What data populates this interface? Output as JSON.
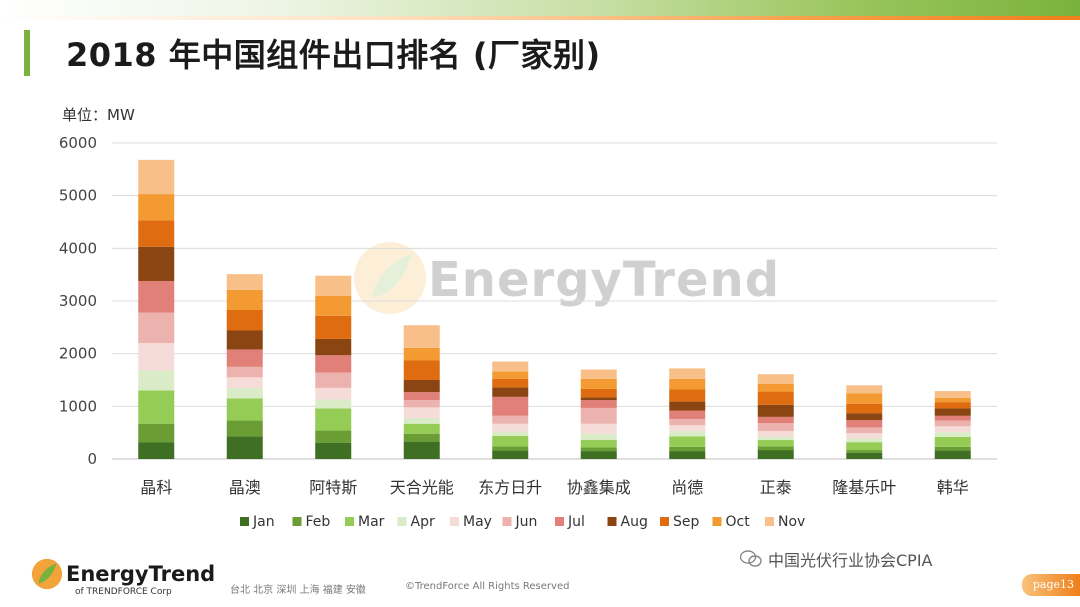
{
  "header": {
    "title": "2018 年中国组件出口排名 (厂家别)",
    "unit_label": "单位：MW"
  },
  "watermark": {
    "text": "EnergyTrend"
  },
  "footer": {
    "logo_text": "EnergyTrend",
    "logo_sub": "of TRENDFORCE Corp",
    "cities": "台北  北京  深圳  上海  福建  安徽",
    "copyright": "©TrendForce All Rights Reserved",
    "wechat_text": "中国光伏行业协会CPIA",
    "page_label": "page13"
  },
  "colors": {
    "green_accent": "#7ab23e",
    "orange_accent": "#ef7f1a"
  },
  "chart_data": {
    "type": "bar",
    "stacked": true,
    "title": "2018 年中国组件出口排名 (厂家别)",
    "ylabel": "单位：MW",
    "xlabel": "",
    "ylim": [
      0,
      6000
    ],
    "yticks": [
      0,
      1000,
      2000,
      3000,
      4000,
      5000,
      6000
    ],
    "grid": true,
    "legend_position": "bottom",
    "categories": [
      "晶科",
      "晶澳",
      "阿特斯",
      "天合光能",
      "东方日升",
      "协鑫集成",
      "尚德",
      "正泰",
      "隆基乐叶",
      "韩华"
    ],
    "series": [
      {
        "name": "Jan",
        "color": "#3f6f23",
        "values": [
          320,
          430,
          310,
          330,
          160,
          150,
          150,
          170,
          120,
          160
        ]
      },
      {
        "name": "Feb",
        "color": "#6a9e34",
        "values": [
          350,
          300,
          230,
          150,
          80,
          70,
          80,
          70,
          50,
          70
        ]
      },
      {
        "name": "Mar",
        "color": "#95cc55",
        "values": [
          630,
          420,
          420,
          190,
          200,
          140,
          200,
          120,
          150,
          190
        ]
      },
      {
        "name": "Apr",
        "color": "#d9ecc7",
        "values": [
          380,
          200,
          170,
          110,
          80,
          120,
          100,
          60,
          70,
          90
        ]
      },
      {
        "name": "May",
        "color": "#f6dcd9",
        "values": [
          520,
          200,
          220,
          200,
          150,
          190,
          110,
          110,
          100,
          110
        ]
      },
      {
        "name": "Jun",
        "color": "#ecb3ae",
        "values": [
          580,
          200,
          290,
          140,
          150,
          300,
          120,
          150,
          110,
          110
        ]
      },
      {
        "name": "Jul",
        "color": "#e08078",
        "values": [
          600,
          330,
          330,
          150,
          360,
          150,
          160,
          120,
          140,
          90
        ]
      },
      {
        "name": "Aug",
        "color": "#8b4513",
        "values": [
          650,
          360,
          310,
          230,
          180,
          50,
          170,
          230,
          130,
          140
        ]
      },
      {
        "name": "Sep",
        "color": "#df6c10",
        "values": [
          500,
          390,
          440,
          370,
          160,
          160,
          230,
          250,
          180,
          120
        ]
      },
      {
        "name": "Oct",
        "color": "#f39a32",
        "values": [
          500,
          380,
          380,
          240,
          140,
          190,
          200,
          150,
          200,
          80
        ]
      },
      {
        "name": "Nov",
        "color": "#f8c088",
        "values": [
          650,
          300,
          380,
          430,
          190,
          180,
          200,
          180,
          150,
          130
        ]
      }
    ]
  }
}
